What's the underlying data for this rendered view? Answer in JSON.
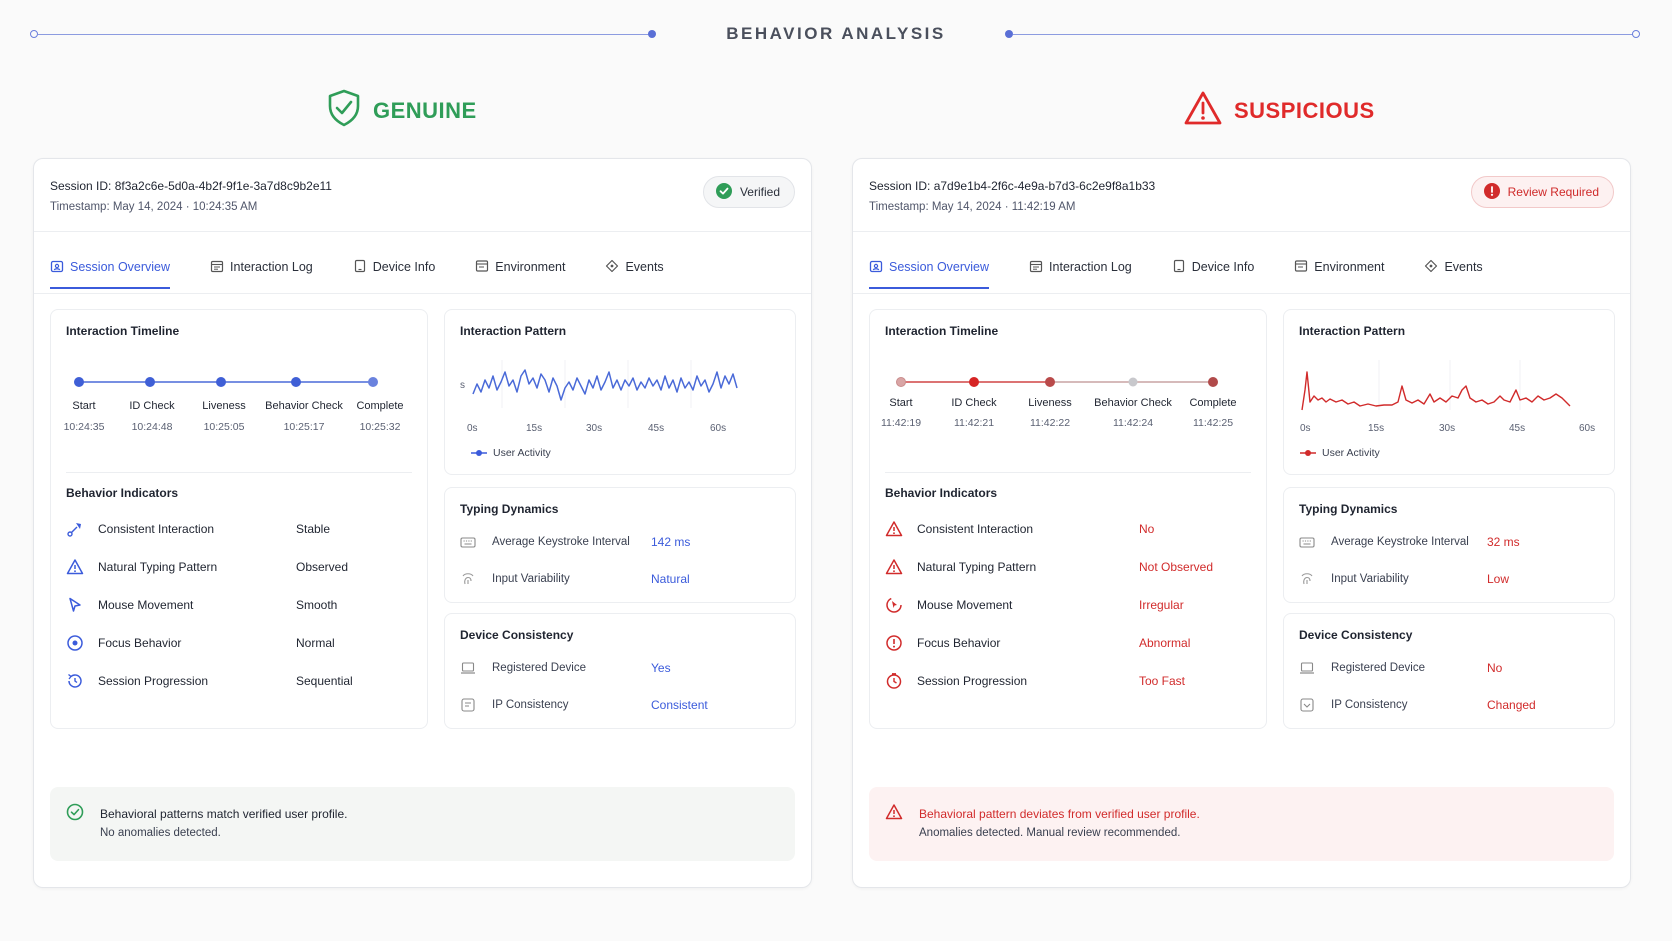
{
  "header": {
    "title": "BEHAVIOR ANALYSIS"
  },
  "colors": {
    "genuine": "#2f9d58",
    "suspicious": "#e02a2a",
    "accent_blue": "#3b5bdb",
    "accent_red": "#d12b2b"
  },
  "left": {
    "verdict": "GENUINE",
    "session_id": "Session ID: 8f3a2c6e-5d0a-4b2f-9f1e-3a7d8c9b2e11",
    "timestamp": "Timestamp: May 14, 2024 · 10:24:35 AM",
    "badge": "Verified",
    "tabs": [
      "Session Overview",
      "Interaction Log",
      "Device Info",
      "Environment",
      "Events"
    ],
    "timeline": {
      "title": "Interaction Timeline",
      "steps": [
        {
          "label": "Start",
          "time": "10:24:35"
        },
        {
          "label": "ID Check",
          "time": "10:24:48"
        },
        {
          "label": "Liveness",
          "time": "10:25:05"
        },
        {
          "label": "Behavior Check",
          "time": "10:25:17"
        },
        {
          "label": "Complete",
          "time": "10:25:32"
        }
      ]
    },
    "indicators": {
      "title": "Behavior Indicators",
      "rows": [
        {
          "label": "Consistent Interaction",
          "value": "Stable"
        },
        {
          "label": "Natural Typing Pattern",
          "value": "Observed"
        },
        {
          "label": "Mouse Movement",
          "value": "Smooth"
        },
        {
          "label": "Focus Behavior",
          "value": "Normal"
        },
        {
          "label": "Session Progression",
          "value": "Sequential"
        }
      ]
    },
    "pattern": {
      "title": "Interaction Pattern",
      "y_label": "s",
      "ticks": [
        "0s",
        "15s",
        "30s",
        "45s",
        "60s"
      ],
      "legend": "User Activity"
    },
    "typing": {
      "title": "Typing Dynamics",
      "rows": [
        {
          "label": "Average Keystroke Interval",
          "value": "142 ms"
        },
        {
          "label": "Input Variability",
          "value": "Natural"
        }
      ]
    },
    "device": {
      "title": "Device Consistency",
      "rows": [
        {
          "label": "Registered Device",
          "value": "Yes"
        },
        {
          "label": "IP Consistency",
          "value": "Consistent"
        }
      ]
    },
    "footer": {
      "line1": "Behavioral patterns match verified user profile.",
      "line2": "No anomalies detected."
    }
  },
  "right": {
    "verdict": "SUSPICIOUS",
    "session_id": "Session ID: a7d9e1b4-2f6c-4e9a-b7d3-6c2e9f8a1b33",
    "timestamp": "Timestamp: May 14, 2024 · 11:42:19 AM",
    "badge": "Review Required",
    "tabs": [
      "Session Overview",
      "Interaction Log",
      "Device Info",
      "Environment",
      "Events"
    ],
    "timeline": {
      "title": "Interaction Timeline",
      "steps": [
        {
          "label": "Start",
          "time": "11:42:19"
        },
        {
          "label": "ID Check",
          "time": "11:42:21"
        },
        {
          "label": "Liveness",
          "time": "11:42:22"
        },
        {
          "label": "Behavior Check",
          "time": "11:42:24"
        },
        {
          "label": "Complete",
          "time": "11:42:25"
        }
      ]
    },
    "indicators": {
      "title": "Behavior Indicators",
      "rows": [
        {
          "label": "Consistent Interaction",
          "value": "No"
        },
        {
          "label": "Natural Typing Pattern",
          "value": "Not Observed"
        },
        {
          "label": "Mouse Movement",
          "value": "Irregular"
        },
        {
          "label": "Focus Behavior",
          "value": "Abnormal"
        },
        {
          "label": "Session Progression",
          "value": "Too Fast"
        }
      ]
    },
    "pattern": {
      "title": "Interaction Pattern",
      "ticks": [
        "0s",
        "15s",
        "30s",
        "45s",
        "60s"
      ],
      "legend": "User Activity"
    },
    "typing": {
      "title": "Typing Dynamics",
      "rows": [
        {
          "label": "Average Keystroke Interval",
          "value": "32 ms"
        },
        {
          "label": "Input Variability",
          "value": "Low"
        }
      ]
    },
    "device": {
      "title": "Device Consistency",
      "rows": [
        {
          "label": "Registered Device",
          "value": "No"
        },
        {
          "label": "IP Consistency",
          "value": "Changed"
        }
      ]
    },
    "footer": {
      "line1": "Behavioral pattern deviates from verified user profile.",
      "line2": "Anomalies detected. Manual review recommended."
    }
  }
}
